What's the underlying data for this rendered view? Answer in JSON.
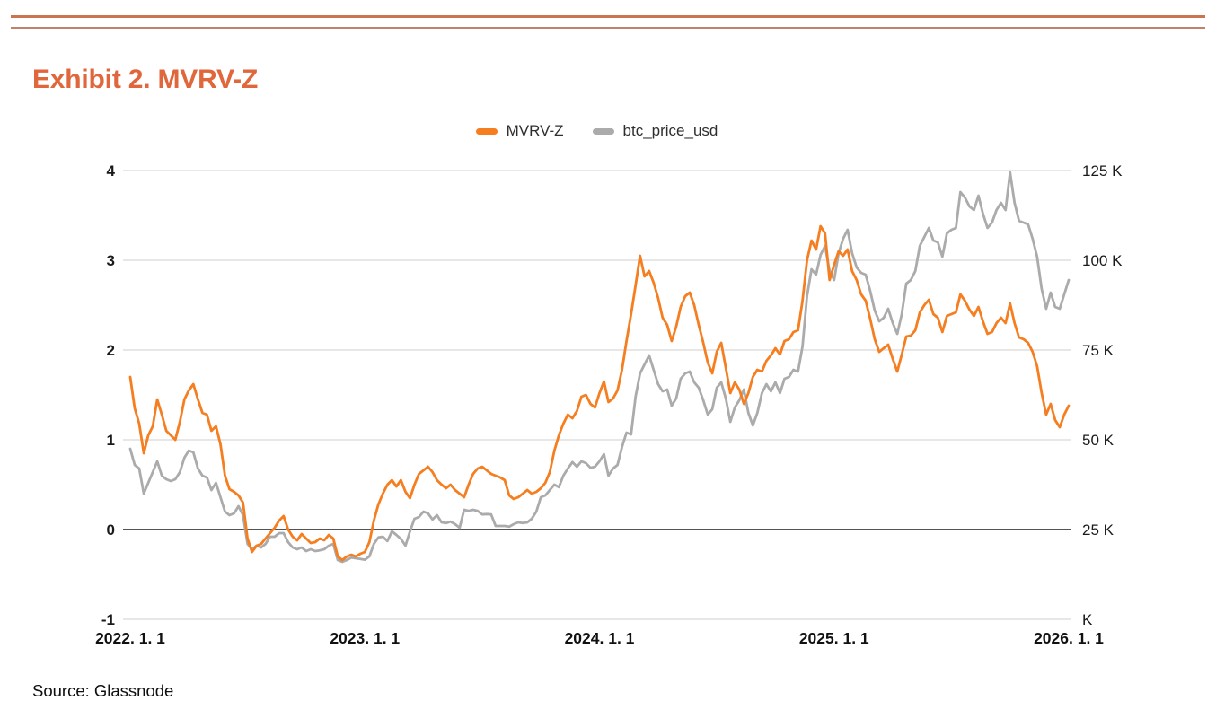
{
  "header": {
    "title": "Exhibit 2. MVRV-Z"
  },
  "legend": {
    "items": [
      {
        "label": "MVRV-Z",
        "color": "#F57E20"
      },
      {
        "label": "btc_price_usd",
        "color": "#ABABAB"
      }
    ]
  },
  "footer": {
    "source": "Source: Glassnode"
  },
  "colors": {
    "title_orange": "#E0663C",
    "rule_thick": "#CC7452",
    "rule_thin": "#C08270",
    "mvrv_line": "#F57E20",
    "btc_line": "#ABABAB",
    "gridline": "#CFCFCF",
    "zero_line": "#3C3C3C",
    "tick_text": "#1A1A1A"
  },
  "chart_data": {
    "type": "line",
    "title": "Exhibit 2. MVRV-Z",
    "x_start": "2022-01-01",
    "x_end": "2026-01-01",
    "interval": "weekly",
    "grid": "horizontal",
    "legend_position": "top-center",
    "x_ticks": [
      "2022. 1. 1",
      "2023. 1. 1",
      "2024. 1. 1",
      "2025. 1. 1",
      "2026. 1. 1"
    ],
    "left_axis": {
      "ticks": [
        4,
        3,
        2,
        1,
        0,
        -1
      ],
      "range": [
        -1,
        4
      ]
    },
    "right_axis": {
      "tick_labels": [
        "125 K",
        "100 K",
        "75 K",
        "50 K",
        "25 K",
        "K"
      ],
      "values_k": [
        125,
        100,
        75,
        50,
        25,
        0
      ],
      "range_k": [
        0,
        125
      ]
    },
    "series": [
      {
        "name": "MVRV-Z",
        "axis": "left",
        "color": "#F57E20",
        "values": [
          1.7,
          1.35,
          1.18,
          0.85,
          1.05,
          1.15,
          1.45,
          1.28,
          1.1,
          1.05,
          1.0,
          1.2,
          1.45,
          1.55,
          1.62,
          1.45,
          1.3,
          1.28,
          1.1,
          1.15,
          0.95,
          0.6,
          0.45,
          0.42,
          0.38,
          0.3,
          -0.1,
          -0.25,
          -0.18,
          -0.16,
          -0.1,
          -0.04,
          0.02,
          0.1,
          0.15,
          0.0,
          -0.08,
          -0.12,
          -0.05,
          -0.1,
          -0.15,
          -0.14,
          -0.1,
          -0.12,
          -0.06,
          -0.1,
          -0.3,
          -0.34,
          -0.3,
          -0.28,
          -0.3,
          -0.27,
          -0.25,
          -0.14,
          0.1,
          0.28,
          0.4,
          0.5,
          0.55,
          0.48,
          0.55,
          0.42,
          0.35,
          0.5,
          0.62,
          0.66,
          0.7,
          0.64,
          0.55,
          0.5,
          0.46,
          0.5,
          0.44,
          0.4,
          0.36,
          0.5,
          0.62,
          0.68,
          0.7,
          0.66,
          0.62,
          0.6,
          0.58,
          0.55,
          0.38,
          0.34,
          0.36,
          0.4,
          0.44,
          0.4,
          0.42,
          0.46,
          0.52,
          0.64,
          0.88,
          1.05,
          1.18,
          1.28,
          1.24,
          1.32,
          1.48,
          1.5,
          1.4,
          1.36,
          1.52,
          1.65,
          1.42,
          1.46,
          1.55,
          1.78,
          2.1,
          2.4,
          2.72,
          3.05,
          2.82,
          2.88,
          2.75,
          2.58,
          2.36,
          2.28,
          2.1,
          2.26,
          2.48,
          2.6,
          2.64,
          2.5,
          2.28,
          2.08,
          1.86,
          1.74,
          1.98,
          2.08,
          1.8,
          1.52,
          1.64,
          1.56,
          1.4,
          1.52,
          1.7,
          1.78,
          1.76,
          1.88,
          1.94,
          2.02,
          1.95,
          2.1,
          2.12,
          2.2,
          2.22,
          2.55,
          3.0,
          3.22,
          3.12,
          3.38,
          3.3,
          2.78,
          2.95,
          3.1,
          3.05,
          3.12,
          2.88,
          2.78,
          2.62,
          2.55,
          2.35,
          2.12,
          1.98,
          2.02,
          2.06,
          1.9,
          1.76,
          1.95,
          2.15,
          2.16,
          2.22,
          2.42,
          2.5,
          2.56,
          2.4,
          2.36,
          2.2,
          2.38,
          2.4,
          2.42,
          2.62,
          2.55,
          2.45,
          2.38,
          2.48,
          2.32,
          2.18,
          2.2,
          2.3,
          2.36,
          2.3,
          2.52,
          2.3,
          2.14,
          2.12,
          2.08,
          1.98,
          1.82,
          1.52,
          1.28,
          1.4,
          1.22,
          1.14,
          1.28,
          1.38
        ]
      },
      {
        "name": "btc_price_usd",
        "axis": "right",
        "unit": "K USD",
        "color": "#ABABAB",
        "values": [
          47.5,
          43,
          42,
          35,
          38,
          41,
          44,
          40,
          39,
          38.5,
          39,
          41,
          45,
          47,
          46.5,
          42,
          40,
          39.5,
          36,
          38,
          34,
          30,
          29,
          29.5,
          31.5,
          29,
          21,
          19.5,
          20.5,
          20,
          21,
          23,
          23,
          24,
          24,
          21.5,
          20,
          19.5,
          20,
          19,
          19.5,
          19,
          19.2,
          19.5,
          20.5,
          21,
          16.5,
          16,
          16.5,
          17.2,
          17,
          16.8,
          16.6,
          17.5,
          21,
          22.8,
          23,
          21.8,
          24.5,
          23.5,
          22.4,
          20.5,
          24.5,
          28,
          28.5,
          30,
          29.5,
          27.8,
          29,
          27,
          26.8,
          27.2,
          26.5,
          25.5,
          30.5,
          30.2,
          30.5,
          30.2,
          29.2,
          29.3,
          29.2,
          26,
          26,
          26,
          25.8,
          26.5,
          27,
          26.8,
          27,
          28,
          30,
          34,
          34.5,
          36,
          37.5,
          36.8,
          40,
          42,
          43.8,
          42.5,
          44,
          43.5,
          42.2,
          42.5,
          44,
          46,
          40,
          42,
          43,
          48,
          52,
          51.5,
          62,
          68.5,
          71,
          73.5,
          69.5,
          65.5,
          63.5,
          64,
          59.5,
          61.5,
          67,
          68.5,
          69,
          66,
          64.5,
          61,
          57,
          58.5,
          64.5,
          66,
          61.5,
          55,
          59,
          61,
          64,
          57.5,
          54,
          57.5,
          63,
          65.5,
          63.5,
          66,
          63,
          67,
          67.5,
          69.5,
          69,
          76,
          90,
          97.5,
          96,
          101.5,
          104,
          97,
          94.5,
          102,
          106,
          108.5,
          102,
          98,
          96.5,
          96,
          91.5,
          86,
          83,
          84,
          86.5,
          82.5,
          79.5,
          85,
          93.5,
          94.5,
          97,
          104,
          106.5,
          109,
          105.5,
          105,
          101,
          107.5,
          108.5,
          109,
          119,
          117.5,
          115,
          114,
          118,
          113,
          109,
          110.5,
          114,
          116,
          114,
          124.5,
          116,
          111,
          110.5,
          110,
          106,
          101,
          92,
          86.5,
          91,
          87,
          86.5,
          90.5,
          94.5
        ]
      }
    ]
  }
}
